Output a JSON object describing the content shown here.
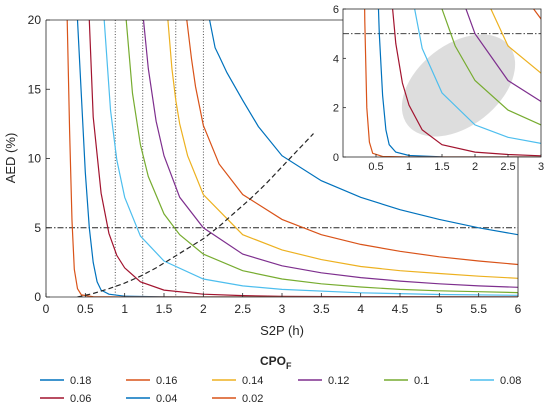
{
  "chart_data": [
    {
      "type": "line",
      "title": "",
      "xlabel": "S2P (h)",
      "ylabel": "AED (%)",
      "xlim": [
        0,
        6
      ],
      "ylim": [
        0,
        20
      ],
      "x_ticks": [
        0,
        0.5,
        1,
        1.5,
        2,
        2.5,
        3,
        3.5,
        4,
        4.5,
        5,
        5.5,
        6
      ],
      "x_tick_labels": [
        "0",
        "0.5",
        "1",
        "1.5",
        "2",
        "2.5",
        "3",
        "3.5",
        "4",
        "4.5",
        "5",
        "5.5",
        "6"
      ],
      "y_ticks": [
        0,
        5,
        10,
        15,
        20
      ],
      "y_tick_labels": [
        "0",
        "5",
        "10",
        "15",
        "20"
      ],
      "grid": false,
      "series": [
        {
          "name": "0.18",
          "color": "#0072BD",
          "v": 2.15,
          "x": [
            2.08,
            2.15,
            2.2,
            2.3,
            2.5,
            2.7,
            3,
            3.5,
            4,
            4.5,
            5,
            5.5,
            6
          ],
          "y": [
            20,
            18,
            17.4,
            16.2,
            14.2,
            12.3,
            10.2,
            8.4,
            7.2,
            6.3,
            5.6,
            5,
            4.5
          ]
        },
        {
          "name": "0.16",
          "color": "#D95319",
          "v": 1.85,
          "x": [
            1.79,
            1.85,
            1.9,
            2,
            2.2,
            2.5,
            3,
            3.5,
            4,
            4.5,
            5,
            5.5,
            6
          ],
          "y": [
            20,
            17.2,
            15.2,
            12.4,
            9.6,
            7.4,
            5.6,
            4.5,
            3.8,
            3.3,
            2.9,
            2.6,
            2.35
          ]
        },
        {
          "name": "0.14",
          "color": "#EDB120",
          "v": 1.6,
          "x": [
            1.55,
            1.6,
            1.65,
            1.7,
            1.8,
            2,
            2.5,
            3,
            3.5,
            4,
            4.5,
            5,
            5.5,
            6
          ],
          "y": [
            20,
            16.5,
            14.2,
            12.5,
            10.2,
            7.4,
            4.5,
            3.4,
            2.7,
            2.2,
            1.9,
            1.7,
            1.5,
            1.35
          ]
        },
        {
          "name": "0.12",
          "color": "#7E2F8E",
          "v": 1.3,
          "x": [
            1.24,
            1.3,
            1.4,
            1.5,
            1.7,
            2,
            2.5,
            3,
            3.5,
            4,
            4.5,
            5,
            5.5,
            6
          ],
          "y": [
            20,
            16.5,
            12.7,
            10.2,
            7.2,
            5,
            3.1,
            2.25,
            1.75,
            1.4,
            1.15,
            0.95,
            0.8,
            0.7
          ]
        },
        {
          "name": "0.1",
          "color": "#77AC30",
          "v": 1.1,
          "x": [
            1.02,
            1.1,
            1.2,
            1.3,
            1.5,
            1.7,
            2,
            2.5,
            3,
            3.5,
            4,
            4.5,
            5,
            5.5,
            6
          ],
          "y": [
            20,
            14.7,
            11,
            8.7,
            6,
            4.5,
            3.1,
            1.9,
            1.3,
            0.95,
            0.72,
            0.55,
            0.45,
            0.38,
            0.32
          ]
        },
        {
          "name": "0.08",
          "color": "#4DBEEE",
          "v": 0.82,
          "x": [
            0.74,
            0.82,
            0.9,
            1,
            1.2,
            1.5,
            2,
            2.5,
            3,
            4,
            5,
            6
          ],
          "y": [
            20,
            13.5,
            9.9,
            7.2,
            4.4,
            2.6,
            1.3,
            0.8,
            0.55,
            0.3,
            0.18,
            0.12
          ]
        },
        {
          "name": "0.06",
          "color": "#A2142F",
          "v": 0.6,
          "x": [
            0.55,
            0.6,
            0.7,
            0.8,
            0.9,
            1,
            1.2,
            1.5,
            2,
            2.5,
            3,
            4,
            6
          ],
          "y": [
            20,
            13,
            7.5,
            4.6,
            3,
            2.1,
            1.1,
            0.5,
            0.2,
            0.1,
            0.05,
            0.02,
            0
          ]
        },
        {
          "name": "0.04",
          "color": "#0072BD",
          "v": 0.45,
          "x": [
            0.4,
            0.45,
            0.5,
            0.55,
            0.6,
            0.65,
            0.7,
            0.8,
            1,
            1.5,
            2,
            3,
            6
          ],
          "y": [
            20,
            14.5,
            9,
            5,
            2.5,
            1.1,
            0.5,
            0.2,
            0.06,
            0.01,
            0,
            0,
            0
          ]
        },
        {
          "name": "0.02",
          "color": "#D95319",
          "v": 0.3,
          "x": [
            0.27,
            0.3,
            0.33,
            0.36,
            0.4,
            0.45,
            0.6,
            1,
            2,
            6
          ],
          "y": [
            20,
            12,
            5.5,
            2,
            0.6,
            0.15,
            0.02,
            0,
            0,
            0
          ],
          "clip": true
        }
      ],
      "dashed_curve": {
        "x": [
          0.4,
          0.6,
          0.8,
          1,
          1.2,
          1.4,
          1.6,
          1.8,
          2,
          2.2,
          2.4,
          2.6,
          2.8,
          3,
          3.2,
          3.4
        ],
        "y": [
          0,
          0.25,
          0.6,
          1,
          1.5,
          2.1,
          2.8,
          3.5,
          4.2,
          5.1,
          6.1,
          7.1,
          8.2,
          9.4,
          10.6,
          11.8
        ]
      },
      "hline": {
        "y": 5
      },
      "vlines": [
        0.88,
        1.23,
        1.65,
        2.0
      ],
      "legend": {
        "title": "CPO",
        "subscript": "F",
        "placement": "bottom",
        "ncol": 6
      }
    },
    {
      "type": "line",
      "title": "",
      "inset": true,
      "xlim": [
        0,
        3
      ],
      "ylim": [
        0,
        6
      ],
      "x_ticks": [
        0.5,
        1,
        1.5,
        2,
        2.5,
        3
      ],
      "x_tick_labels": [
        "0.5",
        "1",
        "1.5",
        "2",
        "2.5",
        "3"
      ],
      "y_ticks": [
        0,
        2,
        4,
        6
      ],
      "y_tick_labels": [
        "0",
        "2",
        "4",
        "6"
      ],
      "hline": {
        "y": 5
      },
      "highlight_ellipse": {
        "cx": 1.75,
        "cy": 2.9,
        "rx": 1.25,
        "ry": 1.8,
        "angle": -38,
        "color": "#d0d0d0"
      }
    }
  ]
}
